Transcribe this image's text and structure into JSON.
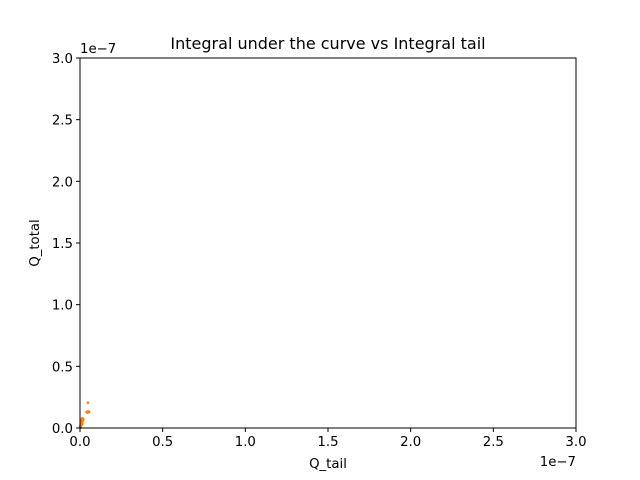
{
  "chart_data": {
    "type": "scatter",
    "title": "Integral under the curve vs Integral tail",
    "xlabel": "Q_tail",
    "ylabel": "Q_total",
    "xlim": [
      0,
      3e-07
    ],
    "ylim": [
      0,
      3e-07
    ],
    "x_offset_text": "1e−7",
    "y_offset_text": "1e−7",
    "x_ticks": [
      0,
      5e-08,
      1e-07,
      1.5e-07,
      2e-07,
      2.5e-07,
      3e-07
    ],
    "x_tick_labels": [
      "0.0",
      "0.5",
      "1.0",
      "1.5",
      "2.0",
      "2.5",
      "3.0"
    ],
    "y_ticks": [
      0,
      5e-08,
      1e-07,
      1.5e-07,
      2e-07,
      2.5e-07,
      3e-07
    ],
    "y_tick_labels": [
      "0.0",
      "0.5",
      "1.0",
      "1.5",
      "2.0",
      "2.5",
      "3.0"
    ],
    "grid": false,
    "marker_color": "#ff7f0e",
    "series": [
      {
        "x": [
          0.0,
          5e-10,
          1e-09,
          1.5e-09,
          2e-10,
          8e-10,
          1.2e-09,
          1.8e-09,
          1e-09,
          6e-10,
          1.4e-09,
          2e-09,
          3e-10,
          9e-10,
          4e-09,
          4.5e-09,
          5e-09,
          5.5e-09,
          4.8e-09,
          4e-10,
          1.1e-09
        ],
        "y": [
          5e-10,
          1.5e-09,
          2.5e-09,
          3.5e-09,
          2e-09,
          4e-09,
          5e-09,
          6e-09,
          7e-09,
          3e-09,
          8e-09,
          7.5e-09,
          1e-09,
          5.5e-09,
          1.3e-08,
          1.25e-08,
          1.35e-08,
          1.3e-08,
          2.05e-08,
          2e-10,
          4.5e-09
        ]
      }
    ]
  }
}
